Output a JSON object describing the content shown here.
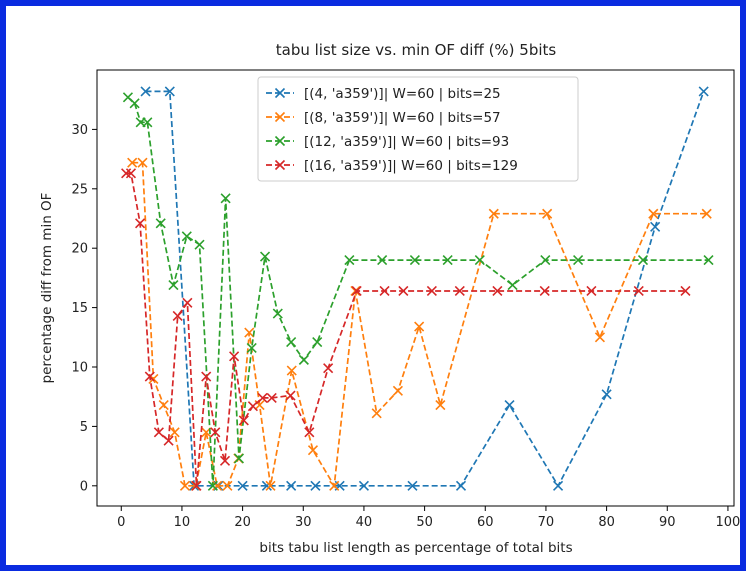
{
  "chart_data": {
    "type": "line",
    "title": "tabu list size vs. min OF diff (%) 5bits",
    "xlabel": "bits tabu list length as percentage of total bits",
    "ylabel": "percentage diff from min OF",
    "xlim": [
      -4,
      101
    ],
    "ylim": [
      -1.7,
      35
    ],
    "xticks": [
      0,
      10,
      20,
      30,
      40,
      50,
      60,
      70,
      80,
      90,
      100
    ],
    "yticks": [
      0,
      5,
      10,
      15,
      20,
      25,
      30
    ],
    "grid": false,
    "legend_position": "top-center",
    "series": [
      {
        "name": "[(4, 'a359')]| W=60 | bits=25",
        "color": "#1f77b4",
        "x": [
          4,
          8,
          12,
          16,
          20,
          24,
          28,
          32,
          36,
          40,
          48,
          56,
          64,
          72,
          80,
          88,
          96
        ],
        "y": [
          33.2,
          33.2,
          0,
          0,
          0,
          0,
          0,
          0,
          0,
          0,
          0,
          0,
          6.8,
          0,
          7.7,
          21.8,
          33.2
        ]
      },
      {
        "name": "[(8, 'a359')]| W=60 | bits=57",
        "color": "#ff7f0e",
        "x": [
          1.8,
          3.5,
          5.3,
          7,
          8.8,
          10.5,
          12.3,
          14,
          15.8,
          17.5,
          19.3,
          21.1,
          22.8,
          24.6,
          28.1,
          31.6,
          35.1,
          38.6,
          42.1,
          45.6,
          49.1,
          52.6,
          61.4,
          70.2,
          78.9,
          87.7,
          96.5
        ],
        "y": [
          27.2,
          27.2,
          9.0,
          6.8,
          4.5,
          0,
          0,
          4.5,
          0,
          0,
          2.3,
          12.9,
          6.8,
          0,
          9.7,
          3.0,
          0,
          16.4,
          6.1,
          8.0,
          13.4,
          6.8,
          22.9,
          22.9,
          12.5,
          22.9,
          22.9
        ]
      },
      {
        "name": "[(12, 'a359')]| W=60 | bits=93",
        "color": "#2ca02c",
        "x": [
          1.1,
          2.2,
          3.2,
          4.3,
          6.5,
          8.6,
          10.8,
          12.9,
          15.1,
          17.2,
          19.4,
          21.5,
          23.7,
          25.8,
          28.0,
          30.1,
          32.3,
          37.6,
          43.0,
          48.4,
          53.8,
          59.1,
          64.5,
          69.9,
          75.3,
          86.0,
          96.8
        ],
        "y": [
          32.7,
          32.2,
          30.6,
          30.6,
          22.1,
          16.9,
          21.0,
          20.3,
          0,
          24.2,
          2.3,
          11.6,
          19.3,
          14.5,
          12.1,
          10.6,
          12.1,
          19.0,
          19.0,
          19.0,
          19.0,
          19.0,
          16.9,
          19.0,
          19.0,
          19.0,
          19.0
        ]
      },
      {
        "name": "[(16, 'a359')]| W=60 | bits=129",
        "color": "#d62728",
        "x": [
          0.8,
          1.6,
          3.1,
          4.7,
          6.2,
          7.8,
          9.3,
          10.9,
          12.4,
          14.0,
          15.5,
          17.1,
          18.6,
          20.2,
          21.7,
          23.3,
          24.8,
          27.9,
          31.0,
          34.1,
          38.8,
          43.4,
          46.5,
          51.2,
          55.8,
          62.0,
          69.8,
          77.5,
          85.3,
          93.0
        ],
        "y": [
          26.3,
          26.3,
          22.1,
          9.2,
          4.5,
          3.8,
          14.3,
          15.4,
          0,
          9.2,
          4.5,
          2.1,
          10.9,
          5.5,
          6.7,
          7.4,
          7.4,
          7.6,
          4.5,
          9.9,
          16.4,
          16.4,
          16.4,
          16.4,
          16.4,
          16.4,
          16.4,
          16.4,
          16.4,
          16.4
        ]
      }
    ]
  }
}
